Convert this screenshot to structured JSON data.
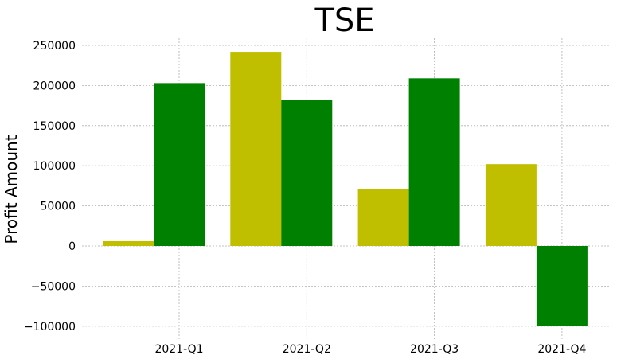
{
  "chart_data": {
    "type": "bar",
    "title": "TSE",
    "xlabel": "",
    "ylabel": "Profit Amount",
    "categories": [
      "2021-Q1",
      "2021-Q2",
      "2021-Q3",
      "2021-Q4"
    ],
    "series": [
      {
        "color": "#bfbf00",
        "values": [
          6000,
          242000,
          71000,
          102000
        ]
      },
      {
        "color": "#008000",
        "values": [
          203000,
          182000,
          209000,
          -100000
        ]
      }
    ],
    "ylim": [
      -110000,
      260000
    ],
    "yticks": [
      -100000,
      -50000,
      0,
      50000,
      100000,
      150000,
      200000,
      250000
    ],
    "ytick_labels": [
      "−100000",
      "−50000",
      "0",
      "50000",
      "100000",
      "150000",
      "200000",
      "250000"
    ],
    "grid": true,
    "legend": "none"
  }
}
